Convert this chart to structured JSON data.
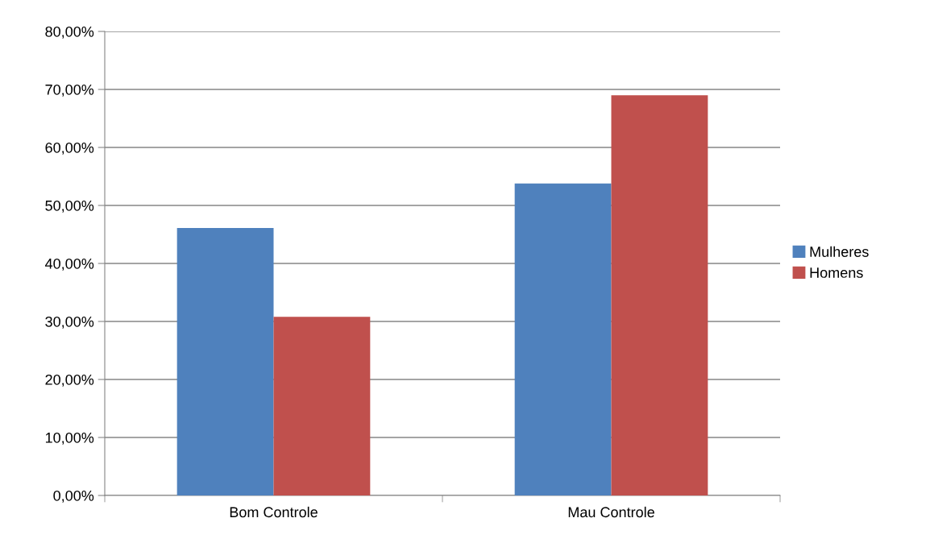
{
  "chart_data": {
    "type": "bar",
    "categories": [
      "Bom Controle",
      "Mau Controle"
    ],
    "series": [
      {
        "name": "Mulheres",
        "color": "#4f81bd",
        "values": [
          46.1,
          53.8
        ]
      },
      {
        "name": "Homens",
        "color": "#c0504d",
        "values": [
          30.8,
          69.0
        ]
      }
    ],
    "ylim": [
      0,
      80
    ],
    "yticks": [
      {
        "value": 0,
        "label": "0,00%"
      },
      {
        "value": 10,
        "label": "10,00%"
      },
      {
        "value": 20,
        "label": "20,00%"
      },
      {
        "value": 30,
        "label": "30,00%"
      },
      {
        "value": 40,
        "label": "40,00%"
      },
      {
        "value": 50,
        "label": "50,00%"
      },
      {
        "value": 60,
        "label": "60,00%"
      },
      {
        "value": 70,
        "label": "70,00%"
      },
      {
        "value": 80,
        "label": "80,00%"
      }
    ],
    "grid": "y",
    "legend": "right"
  }
}
